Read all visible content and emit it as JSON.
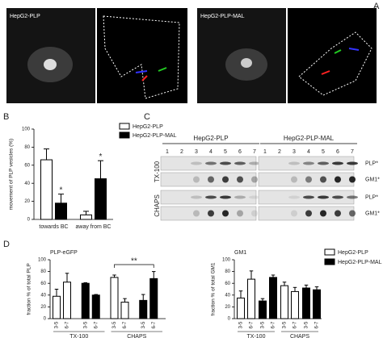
{
  "panel_labels": [
    "A",
    "B",
    "C",
    "D"
  ],
  "panel_a": {
    "images": [
      "HepG2-PLP",
      "HepG2-PLP-MAL"
    ]
  },
  "panel_c": {
    "groups": [
      "HepG2-PLP",
      "HepG2-PLP-MAL"
    ],
    "lanes": [
      "1",
      "2",
      "3",
      "4",
      "5",
      "6",
      "7"
    ],
    "rows": [
      "TX-100",
      "CHAPS"
    ],
    "bands": [
      "PLP*",
      "GM1*"
    ]
  },
  "chart_data": [
    {
      "type": "bar",
      "ylabel": "movement of PLP vesicles (%)",
      "categories": [
        "towards BC",
        "away from BC"
      ],
      "series": [
        {
          "name": "HepG2-PLP",
          "color": "#ffffff",
          "values": [
            66,
            5
          ],
          "errors": [
            12,
            4
          ]
        },
        {
          "name": "HepG2-PLP-MAL",
          "color": "#000000",
          "values": [
            18,
            45
          ],
          "errors": [
            10,
            20
          ]
        }
      ],
      "annotations": [
        "*",
        "*"
      ],
      "ylim": [
        0,
        100
      ],
      "yticks": [
        0,
        20,
        40,
        60,
        80,
        100
      ]
    },
    {
      "type": "bar",
      "title": "PLP-eGFP",
      "ylabel": "fraction % of total PLP",
      "groups": [
        "TX-100",
        "CHAPS"
      ],
      "categories": [
        "3-5",
        "6-7",
        "3-5",
        "6-7"
      ],
      "series": [
        {
          "color": "#ffffff",
          "values": [
            38,
            62,
            70,
            28
          ],
          "errors": [
            12,
            15,
            4,
            6
          ]
        },
        {
          "color": "#000000",
          "values": [
            60,
            40,
            31,
            68
          ],
          "errors": [
            1,
            1,
            10,
            12
          ]
        }
      ],
      "annotation": "**",
      "ylim": [
        0,
        100
      ],
      "yticks": [
        0,
        20,
        40,
        60,
        80,
        100
      ]
    },
    {
      "type": "bar",
      "title": "GM1",
      "ylabel": "fraction % of total GM1",
      "groups": [
        "TX-100",
        "CHAPS"
      ],
      "categories": [
        "3-5",
        "6-7",
        "3-5",
        "6-7"
      ],
      "series": [
        {
          "name": "HepG2-PLP",
          "color": "#ffffff",
          "values": [
            35,
            67,
            56,
            46
          ],
          "errors": [
            12,
            14,
            6,
            7
          ]
        },
        {
          "name": "HepG2-PLP-MAL",
          "color": "#000000",
          "values": [
            30,
            70,
            52,
            49
          ],
          "errors": [
            4,
            4,
            5,
            5
          ]
        }
      ],
      "ylim": [
        0,
        100
      ],
      "yticks": [
        0,
        20,
        40,
        60,
        80,
        100
      ]
    }
  ]
}
